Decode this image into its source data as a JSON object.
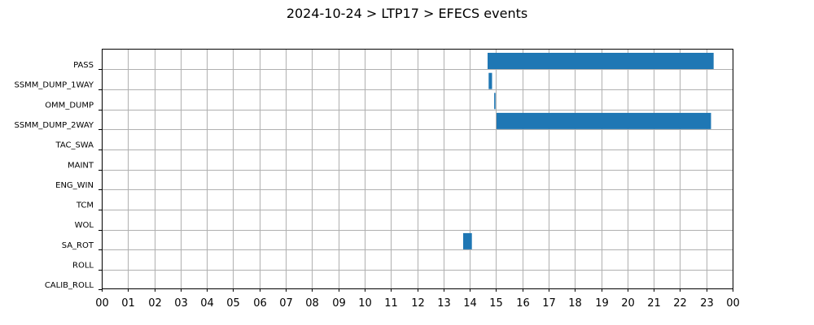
{
  "chart_data": {
    "type": "bar",
    "orientation": "horizontal-timeline",
    "title": "2024-10-24 > LTP17 > EFECS events",
    "xlabel": "",
    "ylabel": "",
    "xlim": [
      0,
      24
    ],
    "x_ticks": [
      {
        "value": 0,
        "label": "00"
      },
      {
        "value": 1,
        "label": "01"
      },
      {
        "value": 2,
        "label": "02"
      },
      {
        "value": 3,
        "label": "03"
      },
      {
        "value": 4,
        "label": "04"
      },
      {
        "value": 5,
        "label": "05"
      },
      {
        "value": 6,
        "label": "06"
      },
      {
        "value": 7,
        "label": "07"
      },
      {
        "value": 8,
        "label": "08"
      },
      {
        "value": 9,
        "label": "09"
      },
      {
        "value": 10,
        "label": "10"
      },
      {
        "value": 11,
        "label": "11"
      },
      {
        "value": 12,
        "label": "12"
      },
      {
        "value": 13,
        "label": "13"
      },
      {
        "value": 14,
        "label": "14"
      },
      {
        "value": 15,
        "label": "15"
      },
      {
        "value": 16,
        "label": "16"
      },
      {
        "value": 17,
        "label": "17"
      },
      {
        "value": 18,
        "label": "18"
      },
      {
        "value": 19,
        "label": "19"
      },
      {
        "value": 20,
        "label": "20"
      },
      {
        "value": 21,
        "label": "21"
      },
      {
        "value": 22,
        "label": "22"
      },
      {
        "value": 23,
        "label": "23"
      },
      {
        "value": 24,
        "label": "00"
      }
    ],
    "categories": [
      "PASS",
      "SSMM_DUMP_1WAY",
      "OMM_DUMP",
      "SSMM_DUMP_2WAY",
      "TAC_SWA",
      "MAINT",
      "ENG_WIN",
      "TCM",
      "WOL",
      "SA_ROT",
      "ROLL",
      "CALIB_ROLL"
    ],
    "events": [
      {
        "category": "PASS",
        "start": 14.68,
        "end": 23.28
      },
      {
        "category": "SSMM_DUMP_1WAY",
        "start": 14.72,
        "end": 14.85
      },
      {
        "category": "OMM_DUMP",
        "start": 14.93,
        "end": 14.98
      },
      {
        "category": "SSMM_DUMP_2WAY",
        "start": 15.02,
        "end": 23.18
      },
      {
        "category": "SA_ROT",
        "start": 13.75,
        "end": 14.08
      }
    ],
    "grid": true,
    "bar_color": "#1f77b4"
  }
}
